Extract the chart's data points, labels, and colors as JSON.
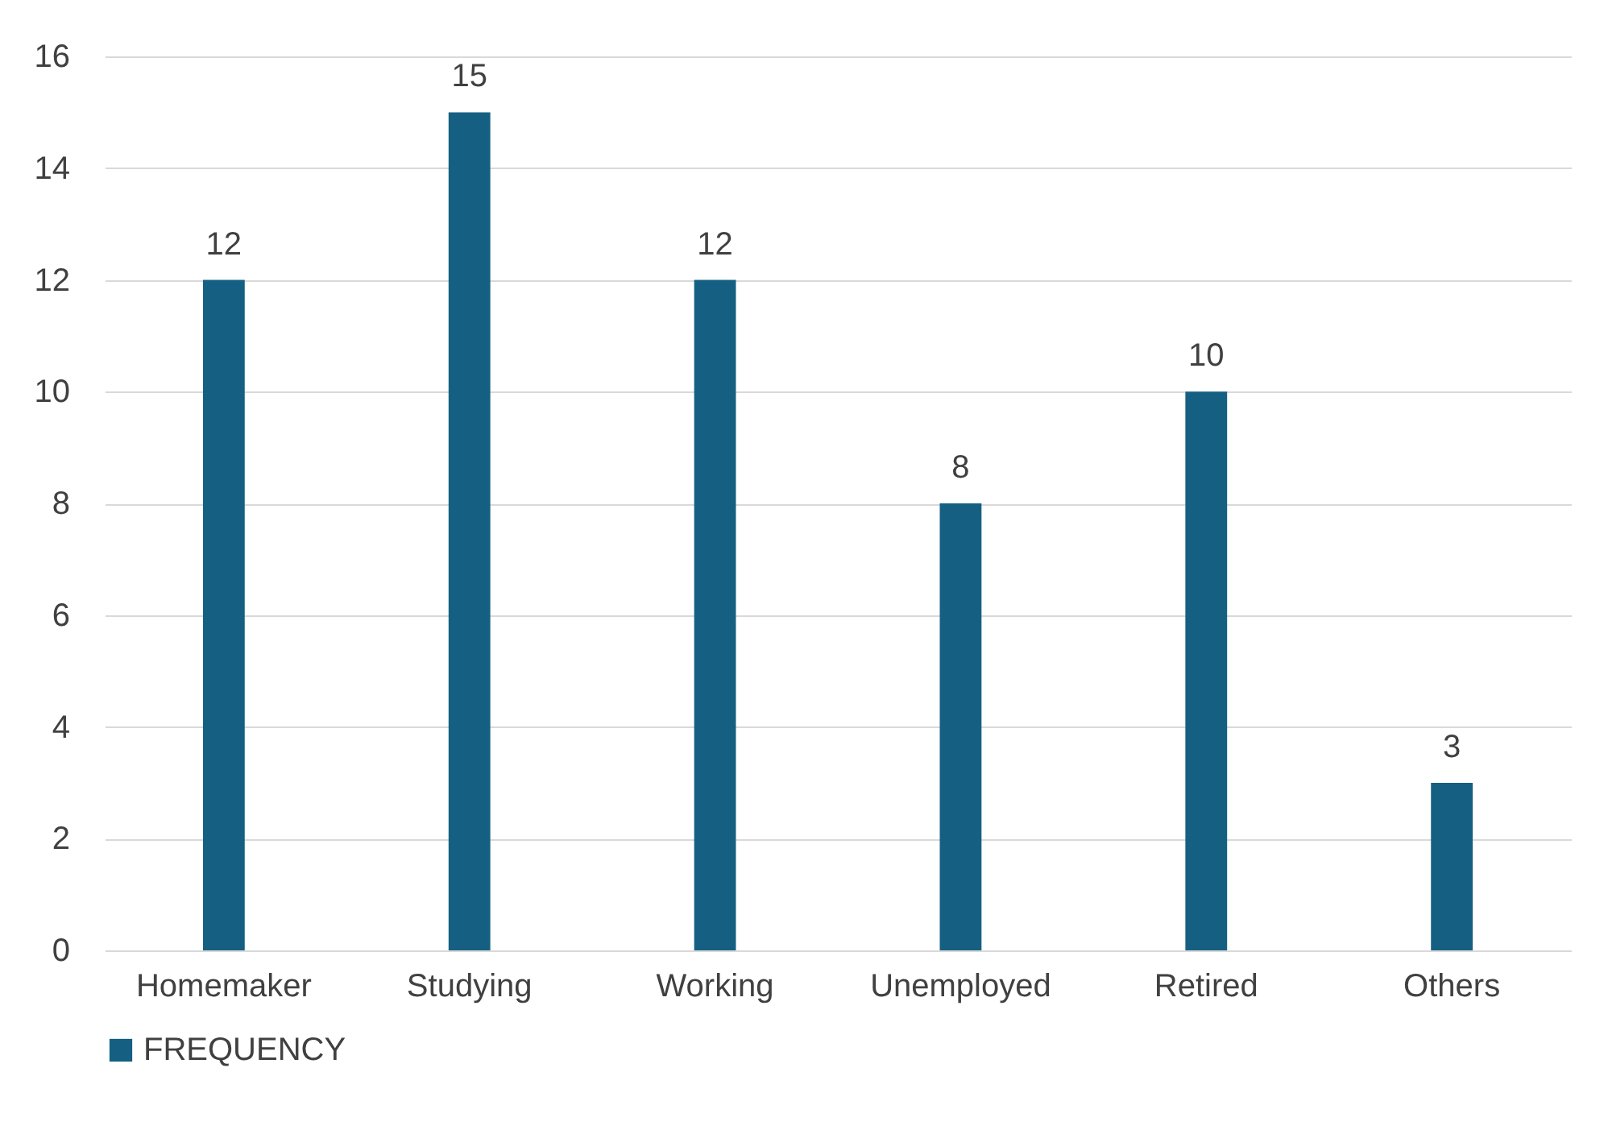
{
  "chart_data": {
    "type": "bar",
    "categories": [
      "Homemaker",
      "Studying",
      "Working",
      "Unemployed",
      "Retired",
      "Others"
    ],
    "series": [
      {
        "name": "FREQUENCY",
        "color": "#156082",
        "values": [
          12,
          15,
          12,
          8,
          10,
          3
        ]
      }
    ],
    "ylim": [
      0,
      16
    ],
    "yticks": [
      0,
      2,
      4,
      6,
      8,
      10,
      12,
      14,
      16
    ],
    "grid": "y",
    "legend": "bottom",
    "data_labels": true
  }
}
